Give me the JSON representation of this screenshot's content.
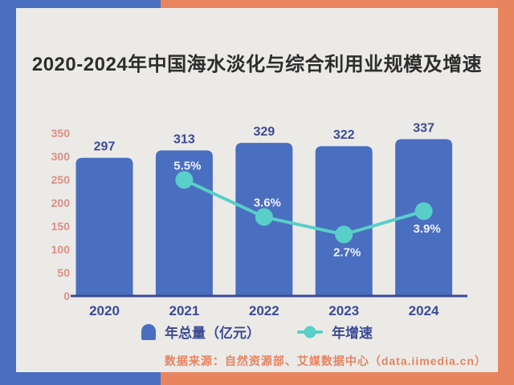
{
  "header": {
    "title": "2020-2024年中国海水淡化与综合利用业规模及增速"
  },
  "legend": {
    "items": [
      {
        "label": "年总量（亿元）",
        "marker": "bar-swatch"
      },
      {
        "label": "年增速",
        "marker": "line-dot-swatch"
      }
    ]
  },
  "footer": {
    "source": "数据来源：自然资源部、艾媒数据中心（data.iimedia.cn）"
  },
  "colors": {
    "frame_blue": "#4a6fc0",
    "frame_salmon": "#e8845e",
    "card_bg": "#ebeae7",
    "bar_blue": "#4a6fc0",
    "line_teal": "#58cfc9",
    "tick_pink": "#dd8e85",
    "label_indigo": "#3b4a94",
    "title_dark": "#2d2d2d",
    "pct_text": "#eef1fb",
    "source_salmon": "#e8825f"
  },
  "chart_data": {
    "type": "bar",
    "title": "2020-2024年中国海水淡化与综合利用业规模及增速",
    "categories": [
      "2020",
      "2021",
      "2022",
      "2023",
      "2024"
    ],
    "series": [
      {
        "name": "年总量（亿元）",
        "type": "bar",
        "values": [
          297,
          313,
          329,
          322,
          337
        ]
      },
      {
        "name": "年增速",
        "type": "line",
        "values": [
          null,
          5.5,
          3.6,
          2.7,
          3.9
        ],
        "labels": [
          "",
          "5.5%",
          "3.6%",
          "2.7%",
          "3.9%"
        ],
        "label_positions": [
          "",
          "above",
          "above",
          "below",
          "below"
        ]
      }
    ],
    "y_ticks": [
      0,
      50,
      100,
      150,
      200,
      250,
      300,
      350
    ],
    "ylim": [
      0,
      350
    ],
    "grid": false,
    "legend_position": "bottom"
  }
}
